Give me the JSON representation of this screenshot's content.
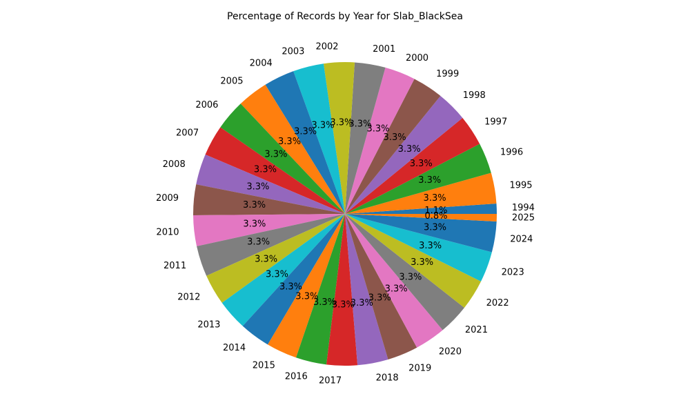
{
  "chart_data": {
    "type": "pie",
    "title": "Percentage of Records by Year for Slab_BlackSea",
    "labels": [
      "1994",
      "1995",
      "1996",
      "1997",
      "1998",
      "1999",
      "2000",
      "2001",
      "2002",
      "2003",
      "2004",
      "2005",
      "2006",
      "2007",
      "2008",
      "2009",
      "2010",
      "2011",
      "2012",
      "2013",
      "2014",
      "2015",
      "2016",
      "2017",
      "2018",
      "2019",
      "2020",
      "2021",
      "2022",
      "2023",
      "2024",
      "2025"
    ],
    "values": [
      1.1,
      3.3,
      3.3,
      3.3,
      3.3,
      3.3,
      3.3,
      3.3,
      3.3,
      3.3,
      3.3,
      3.3,
      3.3,
      3.3,
      3.3,
      3.3,
      3.3,
      3.3,
      3.3,
      3.3,
      3.3,
      3.3,
      3.3,
      3.3,
      3.3,
      3.3,
      3.3,
      3.3,
      3.3,
      3.3,
      3.3,
      0.8
    ],
    "pct_labels": [
      "1.1%",
      "3.3%",
      "3.3%",
      "3.3%",
      "3.3%",
      "3.3%",
      "3.3%",
      "3.3%",
      "3.3%",
      "3.3%",
      "3.3%",
      "3.3%",
      "3.3%",
      "3.3%",
      "3.3%",
      "3.3%",
      "3.3%",
      "3.3%",
      "3.3%",
      "3.3%",
      "3.3%",
      "3.3%",
      "3.3%",
      "3.3%",
      "3.3%",
      "3.3%",
      "3.3%",
      "3.3%",
      "3.3%",
      "3.3%",
      "3.3%",
      "0.8%"
    ],
    "colors": [
      "#1f77b4",
      "#ff7f0e",
      "#2ca02c",
      "#d62728",
      "#9467bd",
      "#8c564b",
      "#e377c2",
      "#7f7f7f",
      "#bcbd22",
      "#17becf"
    ],
    "start_angle_deg": 0,
    "direction": "counterclockwise",
    "legend": "none"
  }
}
